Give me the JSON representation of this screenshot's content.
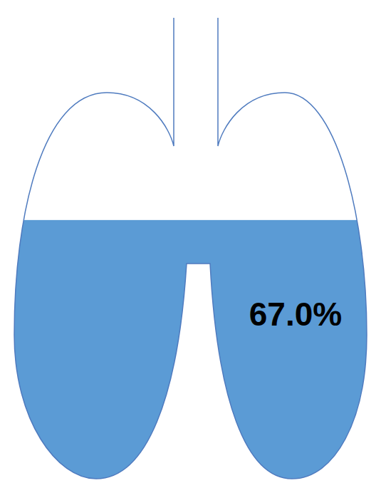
{
  "chart_data": {
    "type": "gauge",
    "values": [
      67.0
    ],
    "value_labels": [
      "67.0%"
    ],
    "ylim": [
      0,
      100
    ],
    "color": "#5b9bd5",
    "data_labels": true,
    "tick_labels": false
  }
}
